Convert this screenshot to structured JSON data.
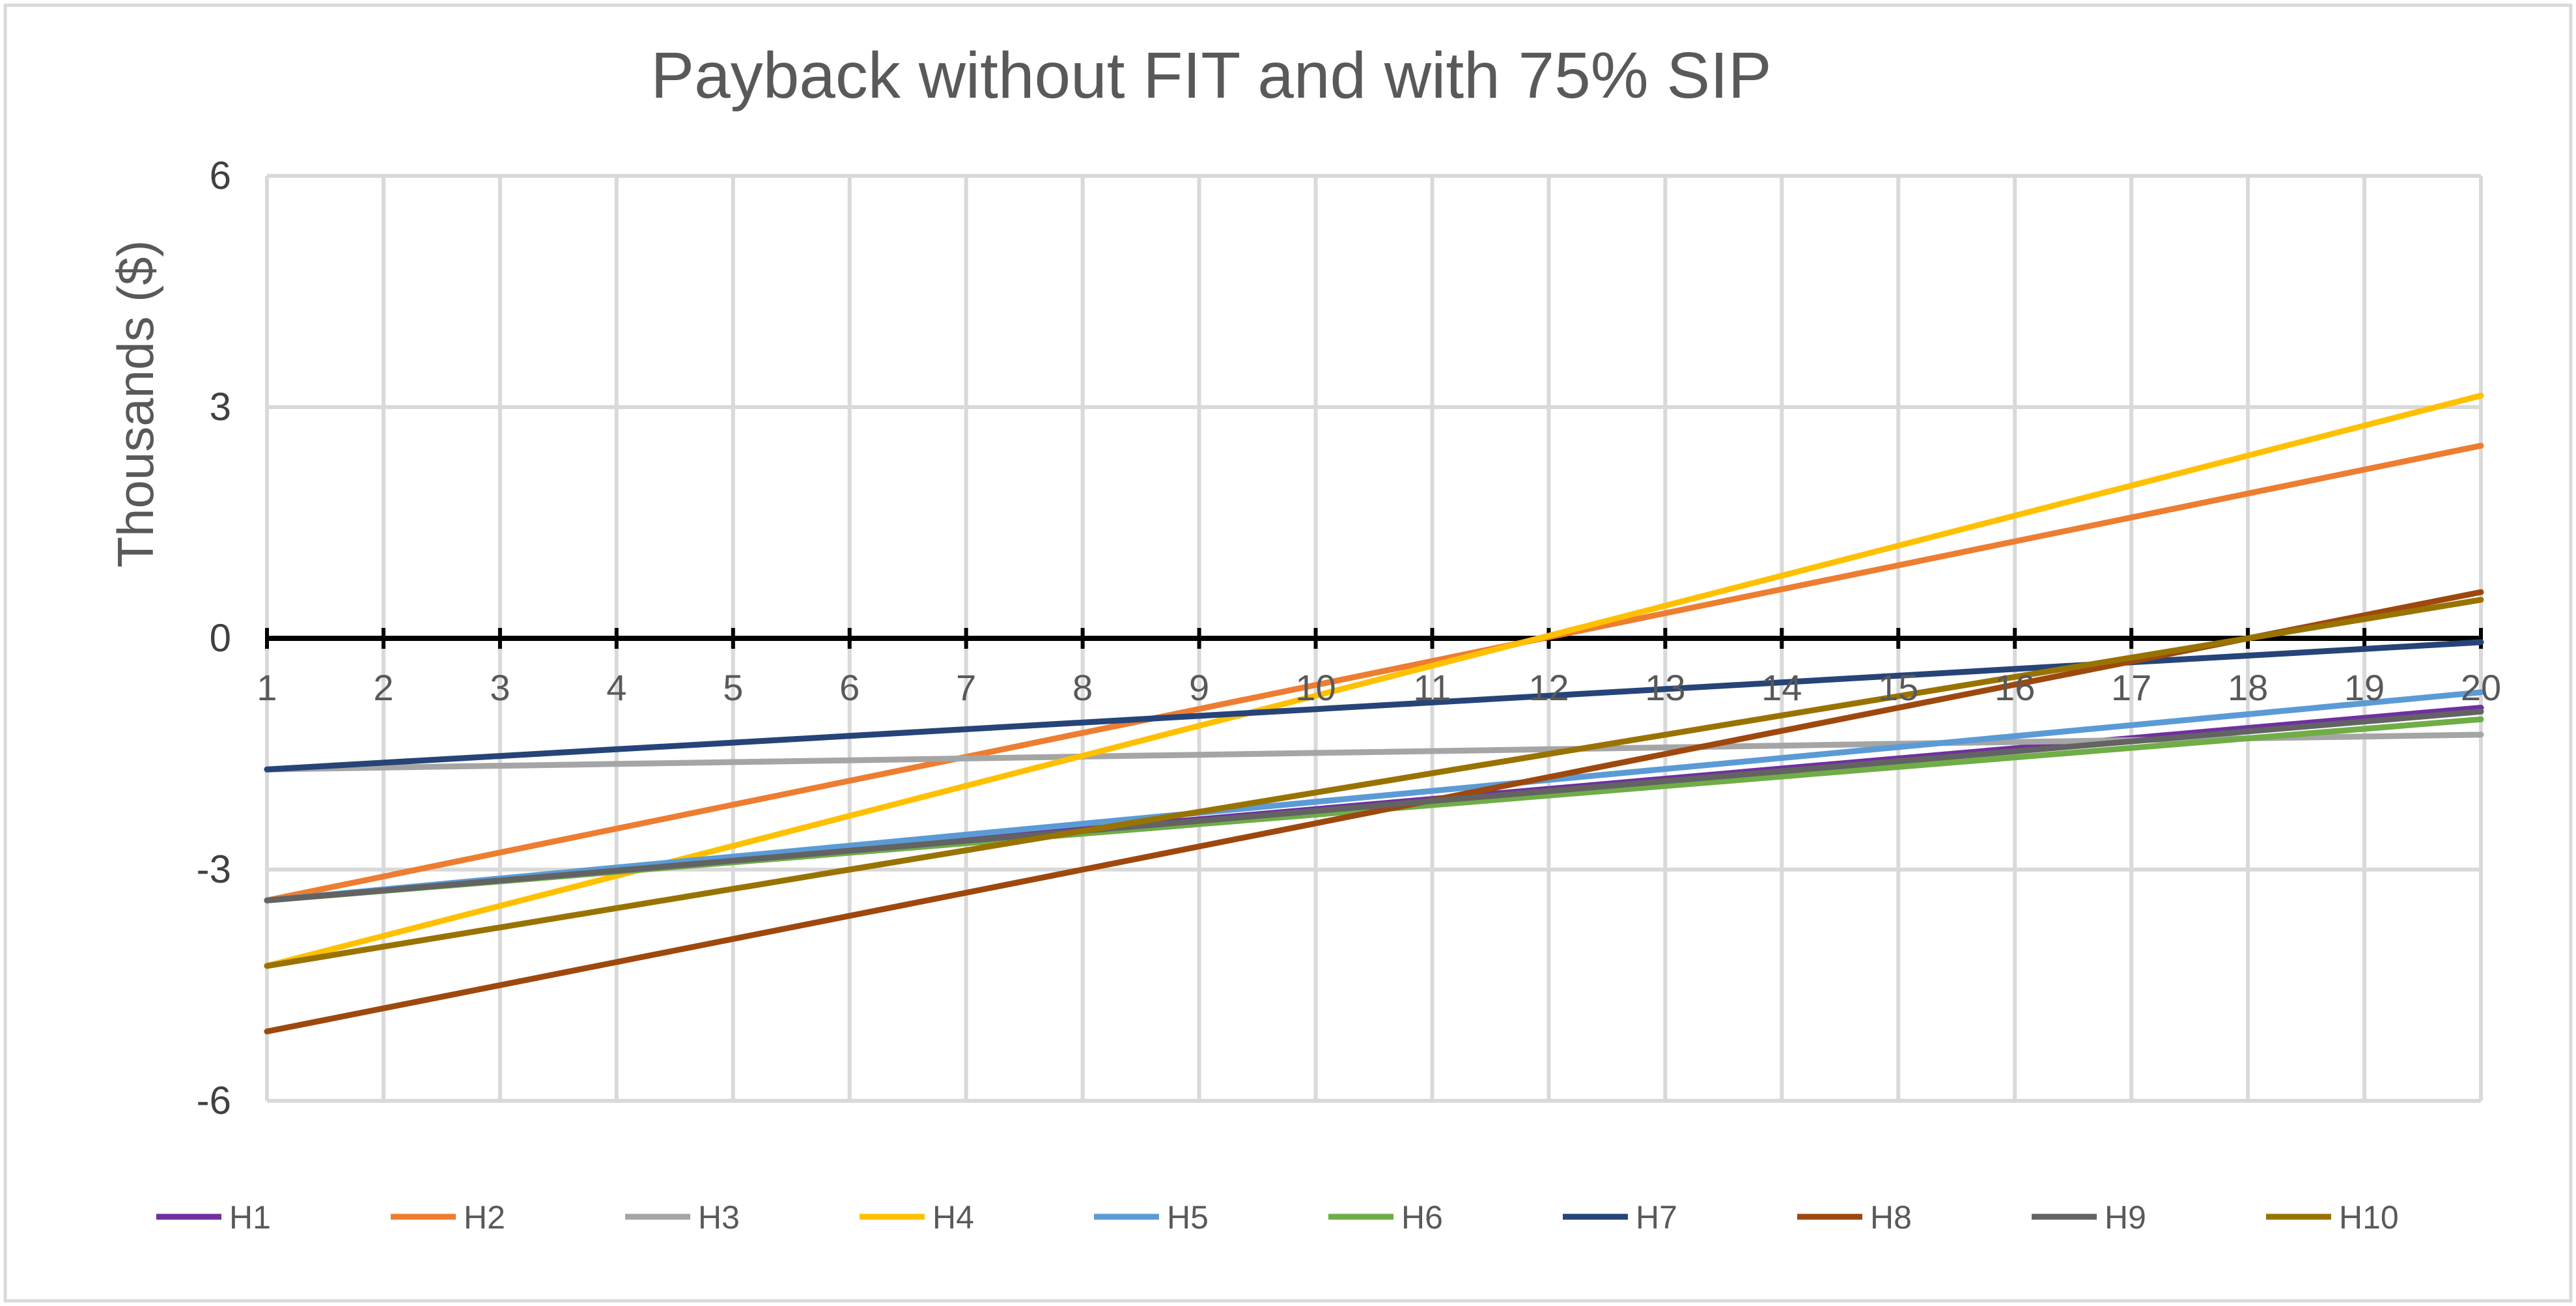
{
  "chart_data": {
    "type": "line",
    "title": "Payback without FIT and with 75% SIP",
    "ylabel": "Thousands ($)",
    "xlabel": "",
    "x": [
      1,
      2,
      3,
      4,
      5,
      6,
      7,
      8,
      9,
      10,
      11,
      12,
      13,
      14,
      15,
      16,
      17,
      18,
      19,
      20
    ],
    "ylim": [
      -6,
      6
    ],
    "yticks": [
      6,
      3,
      0,
      -3,
      -6
    ],
    "grid": true,
    "legend_position": "bottom",
    "series": [
      {
        "name": "H1",
        "color": "#7030a0",
        "start": -3.4,
        "end": -0.9
      },
      {
        "name": "H2",
        "color": "#ed7d31",
        "start": -3.4,
        "end": 2.5
      },
      {
        "name": "H3",
        "color": "#a5a5a5",
        "start": -1.7,
        "end": -1.25
      },
      {
        "name": "H4",
        "color": "#ffc000",
        "start": -4.25,
        "end": 3.15
      },
      {
        "name": "H5",
        "color": "#5b9bd5",
        "start": -3.4,
        "end": -0.7
      },
      {
        "name": "H6",
        "color": "#70ad47",
        "start": -3.4,
        "end": -1.05
      },
      {
        "name": "H7",
        "color": "#264478",
        "start": -1.7,
        "end": -0.05
      },
      {
        "name": "H8",
        "color": "#9e480e",
        "start": -5.1,
        "end": 0.6
      },
      {
        "name": "H9",
        "color": "#636363",
        "start": -3.4,
        "end": -0.95
      },
      {
        "name": "H10",
        "color": "#997300",
        "start": -4.25,
        "end": 0.5
      }
    ]
  }
}
